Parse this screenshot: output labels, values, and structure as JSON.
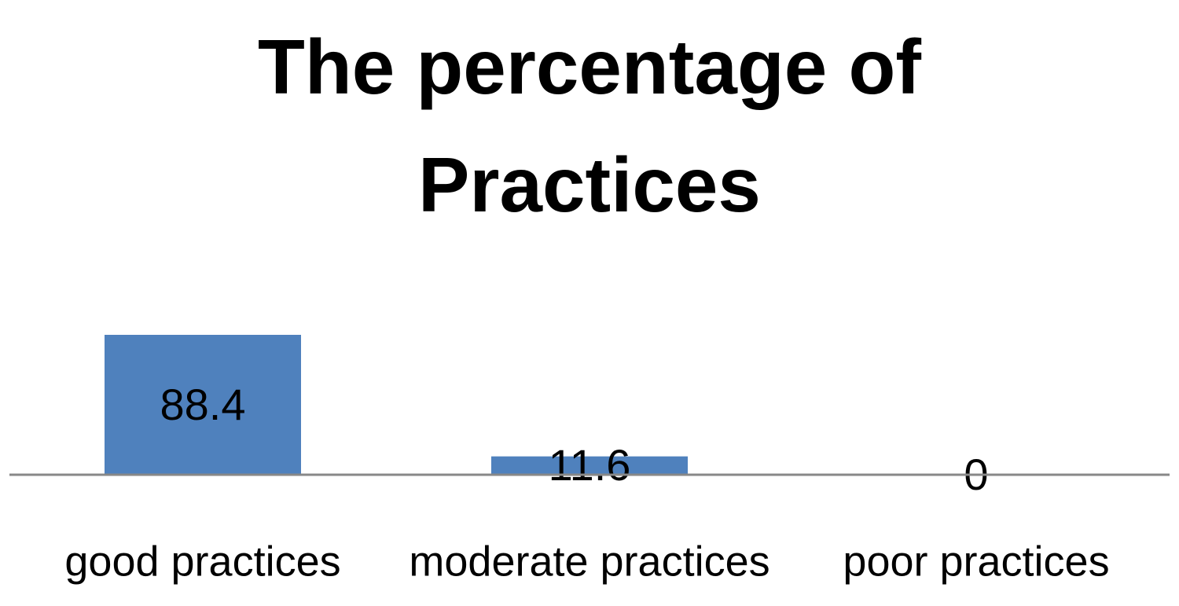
{
  "chart_data": {
    "type": "bar",
    "title": "The percentage of Practices",
    "categories": [
      "good practices",
      "moderate practices",
      "poor practices"
    ],
    "values": [
      88.4,
      11.6,
      0
    ],
    "color": "#4f81bd"
  }
}
